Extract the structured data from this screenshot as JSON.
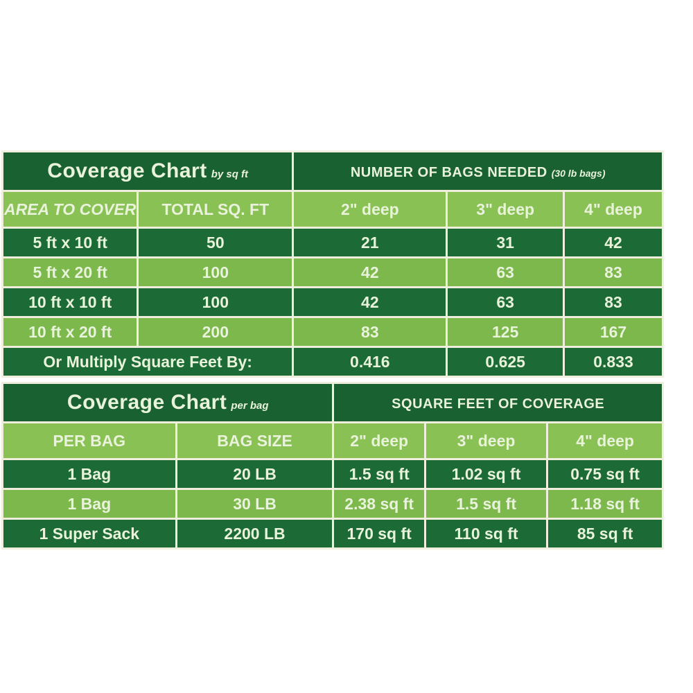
{
  "chart_data": [
    {
      "type": "table",
      "title": "Coverage Chart",
      "title_note": "by sq ft",
      "section_header": "NUMBER OF BAGS NEEDED",
      "section_header_note": "(30 lb bags)",
      "columns": [
        "AREA TO COVER",
        "TOTAL SQ. FT",
        "2\" deep",
        "3\" deep",
        "4\" deep"
      ],
      "rows": [
        [
          "5 ft x 10 ft",
          "50",
          "21",
          "31",
          "42"
        ],
        [
          "5 ft x 20 ft",
          "100",
          "42",
          "63",
          "83"
        ],
        [
          "10 ft x 10 ft",
          "100",
          "42",
          "63",
          "83"
        ],
        [
          "10 ft x 20 ft",
          "200",
          "83",
          "125",
          "167"
        ]
      ],
      "footer_label": "Or Multiply Square Feet By:",
      "footer_values": [
        "0.416",
        "0.625",
        "0.833"
      ]
    },
    {
      "type": "table",
      "title": "Coverage Chart",
      "title_note": "per bag",
      "section_header": "SQUARE FEET OF COVERAGE",
      "columns": [
        "PER BAG",
        "BAG SIZE",
        "2\" deep",
        "3\" deep",
        "4\" deep"
      ],
      "rows": [
        [
          "1 Bag",
          "20 LB",
          "1.5 sq ft",
          "1.02 sq ft",
          "0.75 sq ft"
        ],
        [
          "1 Bag",
          "30 LB",
          "2.38 sq ft",
          "1.5 sq ft",
          "1.18 sq ft"
        ],
        [
          "1 Super Sack",
          "2200 LB",
          "170 sq ft",
          "110 sq ft",
          "85 sq ft"
        ]
      ]
    }
  ],
  "colors": {
    "dark_green": "#1c6b36",
    "title_green": "#1a6132",
    "light_green": "#7db84d",
    "header_light_green": "#8ac155",
    "text_cream": "#e9f2da",
    "border_cream": "#f0eedd",
    "background": "#ffffff"
  }
}
